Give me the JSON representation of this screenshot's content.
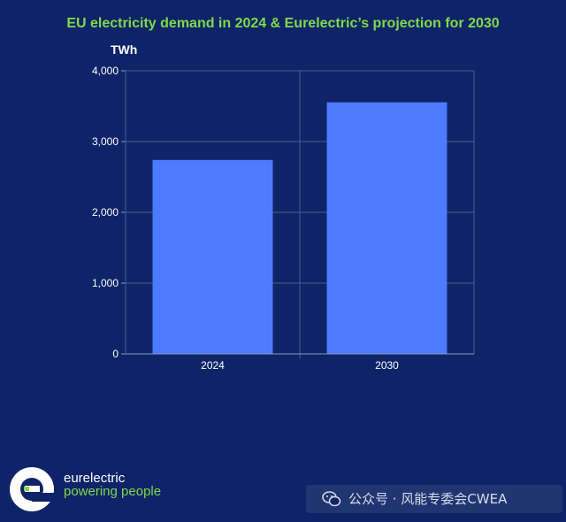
{
  "chart_data": {
    "type": "bar",
    "title": "EU electricity demand in 2024 & Eurelectric’s projection for 2030",
    "ylabel": "TWh",
    "xlabel": "",
    "categories": [
      "2024",
      "2030"
    ],
    "values": [
      2740,
      3555
    ],
    "ylim": [
      0,
      4000
    ],
    "yticks": [
      0,
      1000,
      2000,
      3000,
      4000
    ],
    "ytick_labels": [
      "0",
      "1,000",
      "2,000",
      "3,000",
      "4,000"
    ],
    "grid": true,
    "legend": "none",
    "bar_color": "#4d7bff"
  },
  "branding": {
    "logo_letter": "e",
    "name": "eurelectric",
    "tagline": "powering people"
  },
  "watermark": {
    "icon": "wechat-icon",
    "text": "公众号 · 风能专委会CWEA"
  },
  "colors": {
    "background": "#0f2468",
    "accent_green": "#7fd94a",
    "bar": "#4d7bff"
  }
}
